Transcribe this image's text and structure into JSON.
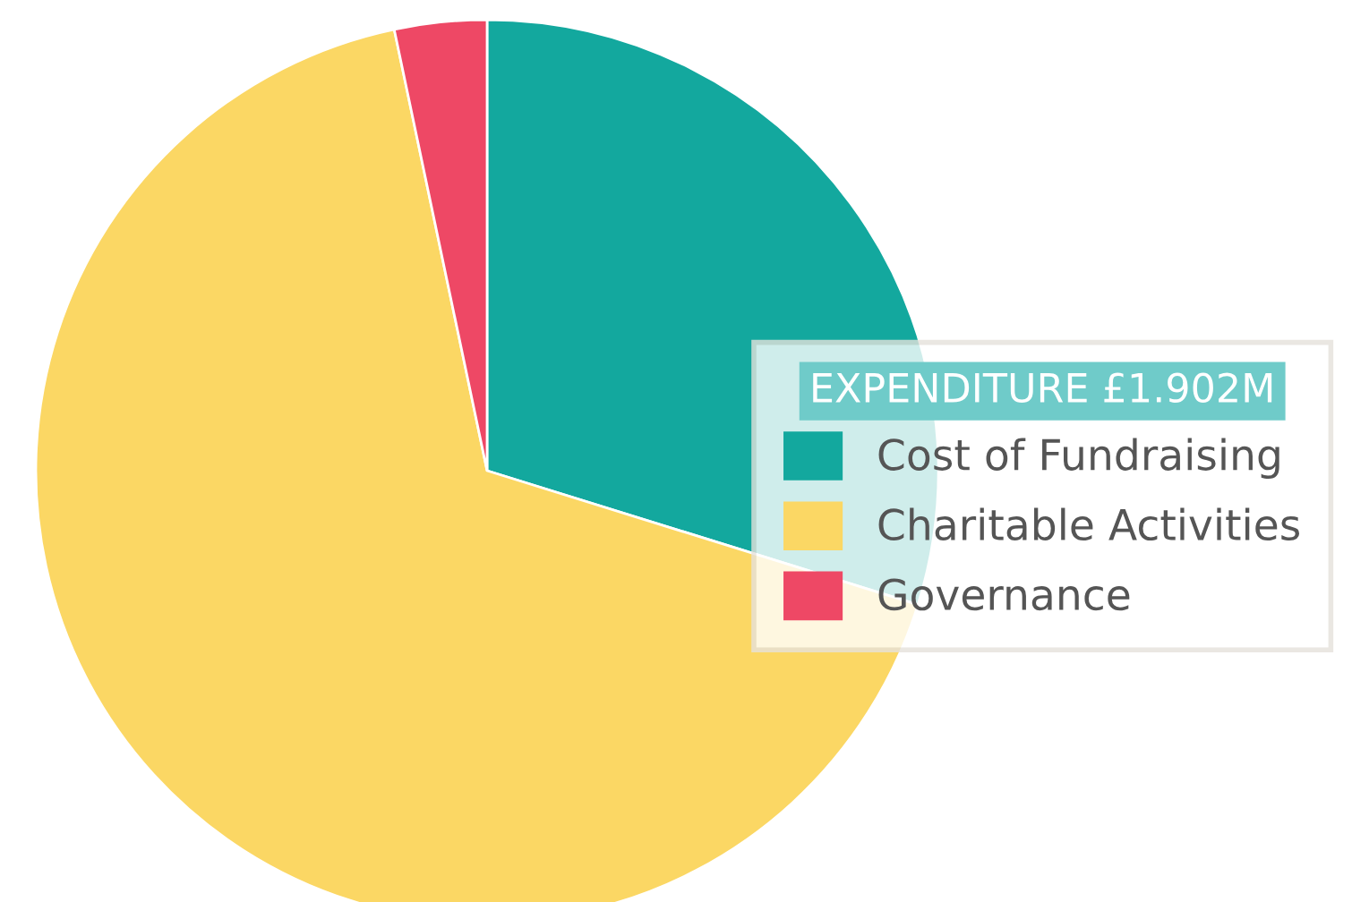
{
  "chart_data": {
    "type": "pie",
    "legend_title": "EXPENDITURE £1.902M",
    "categories": [
      "Cost of Fundraising",
      "Charitable Activities",
      "Governance"
    ],
    "values": [
      29.8,
      66.9,
      3.3
    ],
    "colors": [
      "#13a89e",
      "#fbd764",
      "#ee4865"
    ],
    "legend": "right"
  }
}
